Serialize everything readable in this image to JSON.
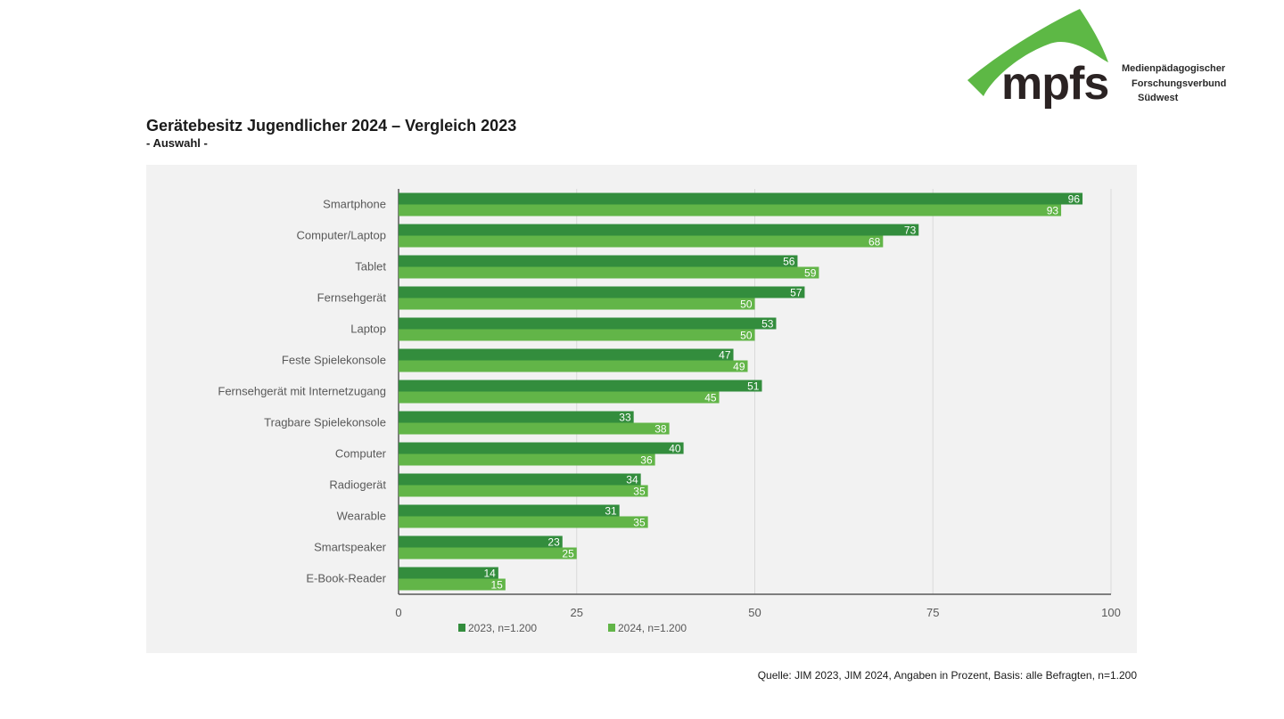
{
  "logo": {
    "wordmark": "mpfs",
    "line1": "Medienpädagogischer",
    "line2": "Forschungsverbund",
    "line3": "Südwest",
    "colors": {
      "arch": "#5db845",
      "wordmark": "#2b2323"
    }
  },
  "header": {
    "title": "Gerätebesitz Jugendlicher 2024 – Vergleich 2023",
    "subtitle": "- Auswahl -"
  },
  "footer": {
    "source": "Quelle: JIM 2023, JIM 2024, Angaben in Prozent, Basis: alle Befragten, n=1.200"
  },
  "chart_data": {
    "type": "bar",
    "orientation": "horizontal",
    "title": "Gerätebesitz Jugendlicher 2024 – Vergleich 2023",
    "subtitle": "- Auswahl -",
    "xlabel": "",
    "ylabel": "",
    "xlim": [
      0,
      100
    ],
    "xticks": [
      0,
      25,
      50,
      75,
      100
    ],
    "grid": true,
    "legend_position": "bottom-left",
    "categories": [
      "Smartphone",
      "Computer/Laptop",
      "Tablet",
      "Fernsehgerät",
      "Laptop",
      "Feste Spielekonsole",
      "Fernsehgerät mit Internetzugang",
      "Tragbare Spielekonsole",
      "Computer",
      "Radiogerät",
      "Wearable",
      "Smartspeaker",
      "E-Book-Reader"
    ],
    "series": [
      {
        "name": "2023, n=1.200",
        "color": "#338d3d",
        "values": [
          96,
          73,
          56,
          57,
          53,
          47,
          51,
          33,
          40,
          34,
          31,
          23,
          14
        ]
      },
      {
        "name": "2024, n=1.200",
        "color": "#62b548",
        "values": [
          93,
          68,
          59,
          50,
          50,
          49,
          45,
          38,
          36,
          35,
          35,
          25,
          15
        ]
      }
    ],
    "colors": {
      "background": "#f2f2f2",
      "grid": "#d9d9d9",
      "axis": "#595959",
      "label_text": "#595959",
      "data_label": "#ffffff"
    }
  }
}
